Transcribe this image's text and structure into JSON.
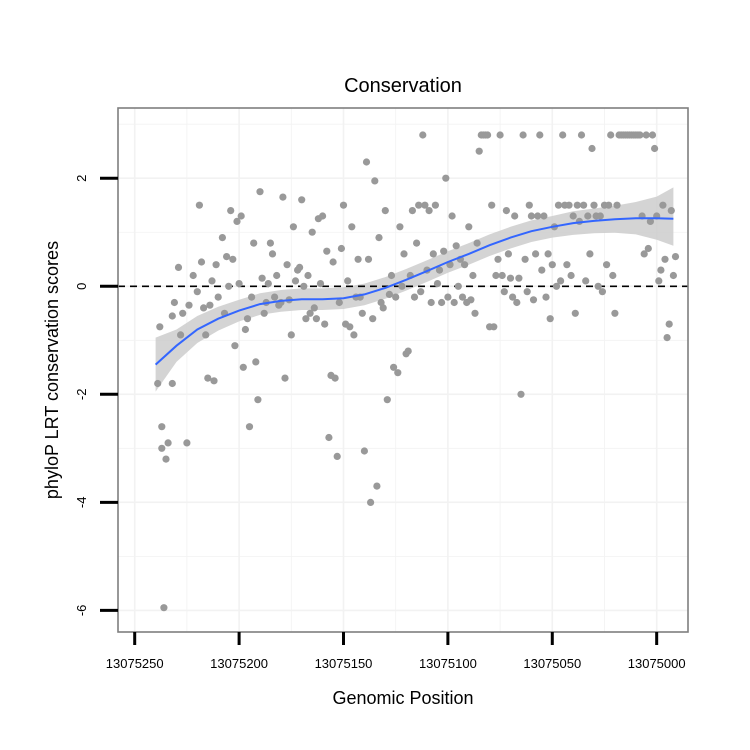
{
  "chart_data": {
    "type": "scatter",
    "title": "Conservation",
    "xlabel": "Genomic Position",
    "ylabel": "phyloP LRT conservation scores",
    "x_axis_reversed": true,
    "xlim": [
      13075258,
      13074985
    ],
    "ylim": [
      -6.4,
      3.3
    ],
    "x_ticks": [
      13075250,
      13075200,
      13075150,
      13075100,
      13075050,
      13075000
    ],
    "x_tick_labels": [
      "13075250",
      "13075200",
      "13075150",
      "13075100",
      "13075050",
      "13075000"
    ],
    "y_ticks": [
      -6,
      -4,
      -2,
      0,
      2
    ],
    "y_tick_labels": [
      "-6",
      "-4",
      "-2",
      "0",
      "2"
    ],
    "reference_line": {
      "y": 0,
      "style": "dashed"
    },
    "grid": true,
    "colors": {
      "points": "#999999",
      "smooth_line": "#3366ff",
      "confidence_band": "#cccccc",
      "reference_line": "#000000",
      "panel_border": "#7f7f7f",
      "grid": "#f2f2f2"
    },
    "points": [
      {
        "x": 13075239,
        "y": -1.8
      },
      {
        "x": 13075238,
        "y": -0.75
      },
      {
        "x": 13075237,
        "y": -2.6
      },
      {
        "x": 13075237,
        "y": -3.0
      },
      {
        "x": 13075236,
        "y": -5.95
      },
      {
        "x": 13075235,
        "y": -3.2
      },
      {
        "x": 13075234,
        "y": -2.9
      },
      {
        "x": 13075232,
        "y": -1.8
      },
      {
        "x": 13075232,
        "y": -0.55
      },
      {
        "x": 13075231,
        "y": -0.3
      },
      {
        "x": 13075229,
        "y": 0.35
      },
      {
        "x": 13075228,
        "y": -0.9
      },
      {
        "x": 13075227,
        "y": -0.5
      },
      {
        "x": 13075225,
        "y": -2.9
      },
      {
        "x": 13075224,
        "y": -0.35
      },
      {
        "x": 13075222,
        "y": 0.2
      },
      {
        "x": 13075220,
        "y": -0.1
      },
      {
        "x": 13075219,
        "y": 1.5
      },
      {
        "x": 13075218,
        "y": 0.45
      },
      {
        "x": 13075217,
        "y": -0.4
      },
      {
        "x": 13075216,
        "y": -0.9
      },
      {
        "x": 13075215,
        "y": -1.7
      },
      {
        "x": 13075214,
        "y": -0.35
      },
      {
        "x": 13075213,
        "y": 0.1
      },
      {
        "x": 13075212,
        "y": -1.75
      },
      {
        "x": 13075211,
        "y": 0.4
      },
      {
        "x": 13075210,
        "y": -0.2
      },
      {
        "x": 13075208,
        "y": 0.9
      },
      {
        "x": 13075207,
        "y": -0.5
      },
      {
        "x": 13075206,
        "y": 0.55
      },
      {
        "x": 13075205,
        "y": 0.0
      },
      {
        "x": 13075204,
        "y": 1.4
      },
      {
        "x": 13075203,
        "y": 0.5
      },
      {
        "x": 13075202,
        "y": -1.1
      },
      {
        "x": 13075201,
        "y": 1.2
      },
      {
        "x": 13075200,
        "y": 0.05
      },
      {
        "x": 13075199,
        "y": 1.3
      },
      {
        "x": 13075198,
        "y": -1.5
      },
      {
        "x": 13075197,
        "y": -0.8
      },
      {
        "x": 13075196,
        "y": -0.6
      },
      {
        "x": 13075195,
        "y": -2.6
      },
      {
        "x": 13075194,
        "y": -0.2
      },
      {
        "x": 13075193,
        "y": 0.8
      },
      {
        "x": 13075192,
        "y": -1.4
      },
      {
        "x": 13075191,
        "y": -2.1
      },
      {
        "x": 13075190,
        "y": 1.75
      },
      {
        "x": 13075189,
        "y": 0.15
      },
      {
        "x": 13075188,
        "y": -0.5
      },
      {
        "x": 13075187,
        "y": -0.3
      },
      {
        "x": 13075186,
        "y": 0.05
      },
      {
        "x": 13075185,
        "y": 0.8
      },
      {
        "x": 13075184,
        "y": 0.6
      },
      {
        "x": 13075183,
        "y": -0.2
      },
      {
        "x": 13075182,
        "y": 0.2
      },
      {
        "x": 13075181,
        "y": -0.35
      },
      {
        "x": 13075180,
        "y": -0.3
      },
      {
        "x": 13075179,
        "y": 1.65
      },
      {
        "x": 13075178,
        "y": -1.7
      },
      {
        "x": 13075177,
        "y": 0.4
      },
      {
        "x": 13075176,
        "y": -0.25
      },
      {
        "x": 13075175,
        "y": -0.9
      },
      {
        "x": 13075174,
        "y": 1.1
      },
      {
        "x": 13075173,
        "y": 0.1
      },
      {
        "x": 13075172,
        "y": 0.3
      },
      {
        "x": 13075171,
        "y": 0.35
      },
      {
        "x": 13075170,
        "y": 1.6
      },
      {
        "x": 13075169,
        "y": 0.0
      },
      {
        "x": 13075168,
        "y": -0.6
      },
      {
        "x": 13075167,
        "y": 0.2
      },
      {
        "x": 13075166,
        "y": -0.5
      },
      {
        "x": 13075165,
        "y": 1.0
      },
      {
        "x": 13075164,
        "y": -0.4
      },
      {
        "x": 13075163,
        "y": -0.6
      },
      {
        "x": 13075162,
        "y": 1.25
      },
      {
        "x": 13075161,
        "y": 0.05
      },
      {
        "x": 13075160,
        "y": 1.3
      },
      {
        "x": 13075159,
        "y": -0.7
      },
      {
        "x": 13075158,
        "y": 0.65
      },
      {
        "x": 13075157,
        "y": -2.8
      },
      {
        "x": 13075156,
        "y": -1.65
      },
      {
        "x": 13075155,
        "y": 0.45
      },
      {
        "x": 13075154,
        "y": -1.7
      },
      {
        "x": 13075153,
        "y": -3.15
      },
      {
        "x": 13075152,
        "y": -0.3
      },
      {
        "x": 13075151,
        "y": 0.7
      },
      {
        "x": 13075150,
        "y": 1.5
      },
      {
        "x": 13075149,
        "y": -0.7
      },
      {
        "x": 13075148,
        "y": 0.1
      },
      {
        "x": 13075147,
        "y": -0.75
      },
      {
        "x": 13075146,
        "y": 1.1
      },
      {
        "x": 13075145,
        "y": -0.9
      },
      {
        "x": 13075144,
        "y": -0.2
      },
      {
        "x": 13075143,
        "y": 0.5
      },
      {
        "x": 13075142,
        "y": -0.2
      },
      {
        "x": 13075141,
        "y": -0.5
      },
      {
        "x": 13075140,
        "y": -3.05
      },
      {
        "x": 13075139,
        "y": 2.3
      },
      {
        "x": 13075138,
        "y": 0.5
      },
      {
        "x": 13075137,
        "y": -4.0
      },
      {
        "x": 13075136,
        "y": -0.6
      },
      {
        "x": 13075135,
        "y": 1.95
      },
      {
        "x": 13075134,
        "y": -3.7
      },
      {
        "x": 13075133,
        "y": 0.9
      },
      {
        "x": 13075132,
        "y": -0.3
      },
      {
        "x": 13075131,
        "y": -0.4
      },
      {
        "x": 13075130,
        "y": 1.4
      },
      {
        "x": 13075129,
        "y": -2.1
      },
      {
        "x": 13075128,
        "y": -0.15
      },
      {
        "x": 13075127,
        "y": 0.2
      },
      {
        "x": 13075126,
        "y": -1.5
      },
      {
        "x": 13075125,
        "y": -0.2
      },
      {
        "x": 13075124,
        "y": -1.6
      },
      {
        "x": 13075123,
        "y": 1.1
      },
      {
        "x": 13075122,
        "y": 0.0
      },
      {
        "x": 13075121,
        "y": 0.6
      },
      {
        "x": 13075120,
        "y": -1.25
      },
      {
        "x": 13075119,
        "y": -1.2
      },
      {
        "x": 13075118,
        "y": 0.2
      },
      {
        "x": 13075117,
        "y": 1.4
      },
      {
        "x": 13075116,
        "y": -0.2
      },
      {
        "x": 13075115,
        "y": 0.8
      },
      {
        "x": 13075114,
        "y": 1.5
      },
      {
        "x": 13075113,
        "y": -0.1
      },
      {
        "x": 13075112,
        "y": 2.8
      },
      {
        "x": 13075111,
        "y": 1.5
      },
      {
        "x": 13075110,
        "y": 0.3
      },
      {
        "x": 13075109,
        "y": 1.4
      },
      {
        "x": 13075108,
        "y": -0.3
      },
      {
        "x": 13075107,
        "y": 0.6
      },
      {
        "x": 13075106,
        "y": 1.5
      },
      {
        "x": 13075105,
        "y": 0.05
      },
      {
        "x": 13075104,
        "y": 0.3
      },
      {
        "x": 13075103,
        "y": -0.3
      },
      {
        "x": 13075102,
        "y": 0.65
      },
      {
        "x": 13075101,
        "y": 2.0
      },
      {
        "x": 13075100,
        "y": -0.2
      },
      {
        "x": 13075099,
        "y": 0.4
      },
      {
        "x": 13075098,
        "y": 1.3
      },
      {
        "x": 13075097,
        "y": -0.3
      },
      {
        "x": 13075096,
        "y": 0.75
      },
      {
        "x": 13075095,
        "y": 0.0
      },
      {
        "x": 13075094,
        "y": 0.5
      },
      {
        "x": 13075093,
        "y": -0.2
      },
      {
        "x": 13075092,
        "y": 0.4
      },
      {
        "x": 13075091,
        "y": -0.3
      },
      {
        "x": 13075090,
        "y": 1.1
      },
      {
        "x": 13075089,
        "y": -0.25
      },
      {
        "x": 13075088,
        "y": 0.2
      },
      {
        "x": 13075087,
        "y": -0.5
      },
      {
        "x": 13075086,
        "y": 0.8
      },
      {
        "x": 13075085,
        "y": 2.5
      },
      {
        "x": 13075084,
        "y": 2.8
      },
      {
        "x": 13075083,
        "y": 2.8
      },
      {
        "x": 13075082,
        "y": 2.8
      },
      {
        "x": 13075081,
        "y": 2.8
      },
      {
        "x": 13075080,
        "y": -0.75
      },
      {
        "x": 13075079,
        "y": 1.5
      },
      {
        "x": 13075078,
        "y": -0.75
      },
      {
        "x": 13075077,
        "y": 0.2
      },
      {
        "x": 13075076,
        "y": 0.5
      },
      {
        "x": 13075075,
        "y": 2.8
      },
      {
        "x": 13075074,
        "y": 0.2
      },
      {
        "x": 13075073,
        "y": -0.1
      },
      {
        "x": 13075072,
        "y": 1.4
      },
      {
        "x": 13075071,
        "y": 0.6
      },
      {
        "x": 13075070,
        "y": 0.15
      },
      {
        "x": 13075069,
        "y": -0.2
      },
      {
        "x": 13075068,
        "y": 1.3
      },
      {
        "x": 13075067,
        "y": -0.3
      },
      {
        "x": 13075066,
        "y": 0.15
      },
      {
        "x": 13075065,
        "y": -2.0
      },
      {
        "x": 13075064,
        "y": 2.8
      },
      {
        "x": 13075063,
        "y": 0.5
      },
      {
        "x": 13075062,
        "y": -0.1
      },
      {
        "x": 13075061,
        "y": 1.5
      },
      {
        "x": 13075060,
        "y": 1.3
      },
      {
        "x": 13075059,
        "y": -0.25
      },
      {
        "x": 13075058,
        "y": 0.6
      },
      {
        "x": 13075057,
        "y": 1.3
      },
      {
        "x": 13075056,
        "y": 2.8
      },
      {
        "x": 13075055,
        "y": 0.3
      },
      {
        "x": 13075054,
        "y": 1.3
      },
      {
        "x": 13075053,
        "y": -0.2
      },
      {
        "x": 13075052,
        "y": 0.6
      },
      {
        "x": 13075051,
        "y": -0.6
      },
      {
        "x": 13075050,
        "y": 0.4
      },
      {
        "x": 13075049,
        "y": 1.1
      },
      {
        "x": 13075048,
        "y": 0.0
      },
      {
        "x": 13075047,
        "y": 1.5
      },
      {
        "x": 13075046,
        "y": 0.1
      },
      {
        "x": 13075045,
        "y": 2.8
      },
      {
        "x": 13075044,
        "y": 1.5
      },
      {
        "x": 13075043,
        "y": 0.4
      },
      {
        "x": 13075042,
        "y": 1.5
      },
      {
        "x": 13075041,
        "y": 0.2
      },
      {
        "x": 13075040,
        "y": 1.3
      },
      {
        "x": 13075039,
        "y": -0.5
      },
      {
        "x": 13075038,
        "y": 1.5
      },
      {
        "x": 13075037,
        "y": 1.2
      },
      {
        "x": 13075036,
        "y": 2.8
      },
      {
        "x": 13075035,
        "y": 1.5
      },
      {
        "x": 13075034,
        "y": 0.1
      },
      {
        "x": 13075033,
        "y": 1.3
      },
      {
        "x": 13075032,
        "y": 0.6
      },
      {
        "x": 13075031,
        "y": 2.55
      },
      {
        "x": 13075030,
        "y": 1.5
      },
      {
        "x": 13075029,
        "y": 1.3
      },
      {
        "x": 13075028,
        "y": 0.0
      },
      {
        "x": 13075027,
        "y": 1.3
      },
      {
        "x": 13075026,
        "y": -0.1
      },
      {
        "x": 13075025,
        "y": 1.5
      },
      {
        "x": 13075024,
        "y": 0.4
      },
      {
        "x": 13075023,
        "y": 1.5
      },
      {
        "x": 13075022,
        "y": 2.8
      },
      {
        "x": 13075021,
        "y": 0.2
      },
      {
        "x": 13075020,
        "y": -0.5
      },
      {
        "x": 13075019,
        "y": 1.5
      },
      {
        "x": 13075018,
        "y": 2.8
      },
      {
        "x": 13075017,
        "y": 2.8
      },
      {
        "x": 13075016,
        "y": 2.8
      },
      {
        "x": 13075015,
        "y": 2.8
      },
      {
        "x": 13075014,
        "y": 2.8
      },
      {
        "x": 13075013,
        "y": 2.8
      },
      {
        "x": 13075012,
        "y": 2.8
      },
      {
        "x": 13075011,
        "y": 2.8
      },
      {
        "x": 13075010,
        "y": 2.8
      },
      {
        "x": 13075009,
        "y": 2.8
      },
      {
        "x": 13075008,
        "y": 2.8
      },
      {
        "x": 13075007,
        "y": 1.3
      },
      {
        "x": 13075006,
        "y": 0.6
      },
      {
        "x": 13075005,
        "y": 2.8
      },
      {
        "x": 13075004,
        "y": 0.7
      },
      {
        "x": 13075003,
        "y": 1.2
      },
      {
        "x": 13075002,
        "y": 2.8
      },
      {
        "x": 13075001,
        "y": 2.55
      },
      {
        "x": 13075000,
        "y": 1.3
      },
      {
        "x": 13074999,
        "y": 0.1
      },
      {
        "x": 13074998,
        "y": 0.3
      },
      {
        "x": 13074997,
        "y": 1.5
      },
      {
        "x": 13074996,
        "y": 0.5
      },
      {
        "x": 13074995,
        "y": -0.95
      },
      {
        "x": 13074994,
        "y": -0.7
      },
      {
        "x": 13074993,
        "y": 1.4
      },
      {
        "x": 13074992,
        "y": 0.2
      },
      {
        "x": 13074991,
        "y": 0.55
      }
    ],
    "smooth_line": [
      {
        "x": 13075240,
        "y": -1.45,
        "lo": -1.95,
        "hi": -0.95
      },
      {
        "x": 13075230,
        "y": -1.1,
        "lo": -1.4,
        "hi": -0.8
      },
      {
        "x": 13075220,
        "y": -0.8,
        "lo": -1.05,
        "hi": -0.55
      },
      {
        "x": 13075210,
        "y": -0.6,
        "lo": -0.82,
        "hi": -0.38
      },
      {
        "x": 13075200,
        "y": -0.45,
        "lo": -0.65,
        "hi": -0.25
      },
      {
        "x": 13075190,
        "y": -0.33,
        "lo": -0.53,
        "hi": -0.13
      },
      {
        "x": 13075180,
        "y": -0.27,
        "lo": -0.47,
        "hi": -0.07
      },
      {
        "x": 13075170,
        "y": -0.24,
        "lo": -0.44,
        "hi": -0.04
      },
      {
        "x": 13075160,
        "y": -0.24,
        "lo": -0.44,
        "hi": -0.04
      },
      {
        "x": 13075150,
        "y": -0.22,
        "lo": -0.42,
        "hi": -0.02
      },
      {
        "x": 13075140,
        "y": -0.15,
        "lo": -0.35,
        "hi": 0.05
      },
      {
        "x": 13075130,
        "y": -0.03,
        "lo": -0.23,
        "hi": 0.17
      },
      {
        "x": 13075120,
        "y": 0.12,
        "lo": -0.08,
        "hi": 0.32
      },
      {
        "x": 13075110,
        "y": 0.28,
        "lo": 0.08,
        "hi": 0.48
      },
      {
        "x": 13075100,
        "y": 0.45,
        "lo": 0.25,
        "hi": 0.65
      },
      {
        "x": 13075090,
        "y": 0.6,
        "lo": 0.4,
        "hi": 0.8
      },
      {
        "x": 13075080,
        "y": 0.76,
        "lo": 0.56,
        "hi": 0.96
      },
      {
        "x": 13075070,
        "y": 0.9,
        "lo": 0.7,
        "hi": 1.1
      },
      {
        "x": 13075060,
        "y": 1.02,
        "lo": 0.82,
        "hi": 1.22
      },
      {
        "x": 13075050,
        "y": 1.1,
        "lo": 0.9,
        "hi": 1.3
      },
      {
        "x": 13075040,
        "y": 1.17,
        "lo": 0.95,
        "hi": 1.39
      },
      {
        "x": 13075030,
        "y": 1.21,
        "lo": 0.98,
        "hi": 1.44
      },
      {
        "x": 13075020,
        "y": 1.24,
        "lo": 0.99,
        "hi": 1.49
      },
      {
        "x": 13075010,
        "y": 1.26,
        "lo": 0.96,
        "hi": 1.56
      },
      {
        "x": 13075000,
        "y": 1.26,
        "lo": 0.86,
        "hi": 1.66
      },
      {
        "x": 13074992,
        "y": 1.25,
        "lo": 0.75,
        "hi": 1.83
      }
    ]
  }
}
